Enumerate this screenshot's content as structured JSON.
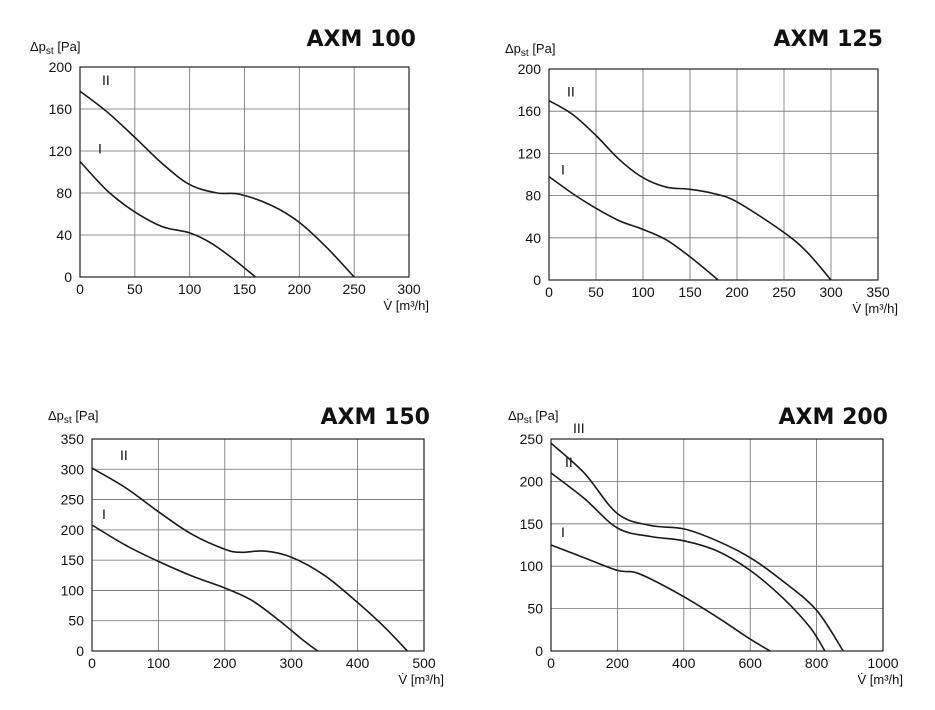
{
  "chart_data": [
    {
      "type": "line",
      "title": "AXM 100",
      "ylabel": "Δp",
      "ylabel_sub": "st",
      "ylabel_unit": "[Pa]",
      "xlabel": "V̇ [m³/h]",
      "xlim": [
        0,
        300
      ],
      "ylim": [
        0,
        200
      ],
      "xticks": [
        0,
        50,
        100,
        150,
        200,
        250,
        300
      ],
      "yticks": [
        0,
        40,
        80,
        120,
        160,
        200
      ],
      "grid": true,
      "series": [
        {
          "name": "I",
          "x": [
            0,
            25,
            50,
            75,
            100,
            120,
            140,
            160
          ],
          "y": [
            110,
            82,
            62,
            48,
            42,
            32,
            17,
            0
          ]
        },
        {
          "name": "II",
          "x": [
            0,
            25,
            50,
            75,
            100,
            125,
            145,
            175,
            200,
            225,
            250
          ],
          "y": [
            177,
            157,
            133,
            108,
            88,
            80,
            79,
            68,
            52,
            28,
            0
          ]
        }
      ]
    },
    {
      "type": "line",
      "title": "AXM 125",
      "ylabel": "Δp",
      "ylabel_sub": "st",
      "ylabel_unit": "[Pa]",
      "xlabel": "V̇ [m³/h]",
      "xlim": [
        0,
        350
      ],
      "ylim": [
        0,
        200
      ],
      "xticks": [
        0,
        50,
        100,
        150,
        200,
        250,
        300,
        350
      ],
      "yticks": [
        0,
        40,
        80,
        120,
        160,
        200
      ],
      "grid": true,
      "series": [
        {
          "name": "I",
          "x": [
            0,
            25,
            50,
            75,
            100,
            125,
            150,
            180
          ],
          "y": [
            98,
            82,
            68,
            56,
            48,
            38,
            22,
            0
          ]
        },
        {
          "name": "II",
          "x": [
            0,
            25,
            50,
            75,
            100,
            125,
            150,
            175,
            200,
            250,
            275,
            300
          ],
          "y": [
            170,
            157,
            137,
            114,
            97,
            88,
            86,
            82,
            74,
            45,
            26,
            0
          ]
        }
      ]
    },
    {
      "type": "line",
      "title": "AXM 150",
      "ylabel": "Δp",
      "ylabel_sub": "st",
      "ylabel_unit": "[Pa]",
      "xlabel": "V̇ [m³/h]",
      "xlim": [
        0,
        500
      ],
      "ylim": [
        0,
        350
      ],
      "xticks": [
        0,
        100,
        200,
        300,
        400,
        500
      ],
      "yticks": [
        0,
        50,
        100,
        150,
        200,
        250,
        300,
        350
      ],
      "grid": true,
      "series": [
        {
          "name": "I",
          "x": [
            0,
            50,
            100,
            150,
            200,
            240,
            280,
            320,
            340
          ],
          "y": [
            208,
            175,
            148,
            124,
            104,
            84,
            52,
            16,
            0
          ]
        },
        {
          "name": "II",
          "x": [
            0,
            50,
            100,
            150,
            200,
            225,
            260,
            300,
            350,
            400,
            440,
            475
          ],
          "y": [
            302,
            270,
            230,
            193,
            168,
            163,
            165,
            155,
            125,
            80,
            40,
            0
          ]
        }
      ]
    },
    {
      "type": "line",
      "title": "AXM 200",
      "ylabel": "Δp",
      "ylabel_sub": "st",
      "ylabel_unit": "[Pa]",
      "xlabel": "V̇ [m³/h]",
      "xlim": [
        0,
        1000
      ],
      "ylim": [
        0,
        250
      ],
      "xticks": [
        0,
        200,
        400,
        600,
        800,
        1000
      ],
      "yticks": [
        0,
        50,
        100,
        150,
        200,
        250
      ],
      "grid": true,
      "series": [
        {
          "name": "I",
          "x": [
            0,
            100,
            200,
            250,
            300,
            400,
            500,
            600,
            660
          ],
          "y": [
            125,
            110,
            95,
            93,
            85,
            64,
            40,
            14,
            0
          ]
        },
        {
          "name": "II",
          "x": [
            0,
            100,
            200,
            300,
            400,
            500,
            600,
            700,
            780,
            825
          ],
          "y": [
            210,
            180,
            145,
            135,
            130,
            118,
            95,
            62,
            28,
            0
          ]
        },
        {
          "name": "III",
          "x": [
            0,
            100,
            200,
            300,
            400,
            500,
            600,
            700,
            800,
            880
          ],
          "y": [
            245,
            210,
            162,
            148,
            144,
            130,
            110,
            82,
            48,
            0
          ]
        }
      ]
    }
  ]
}
